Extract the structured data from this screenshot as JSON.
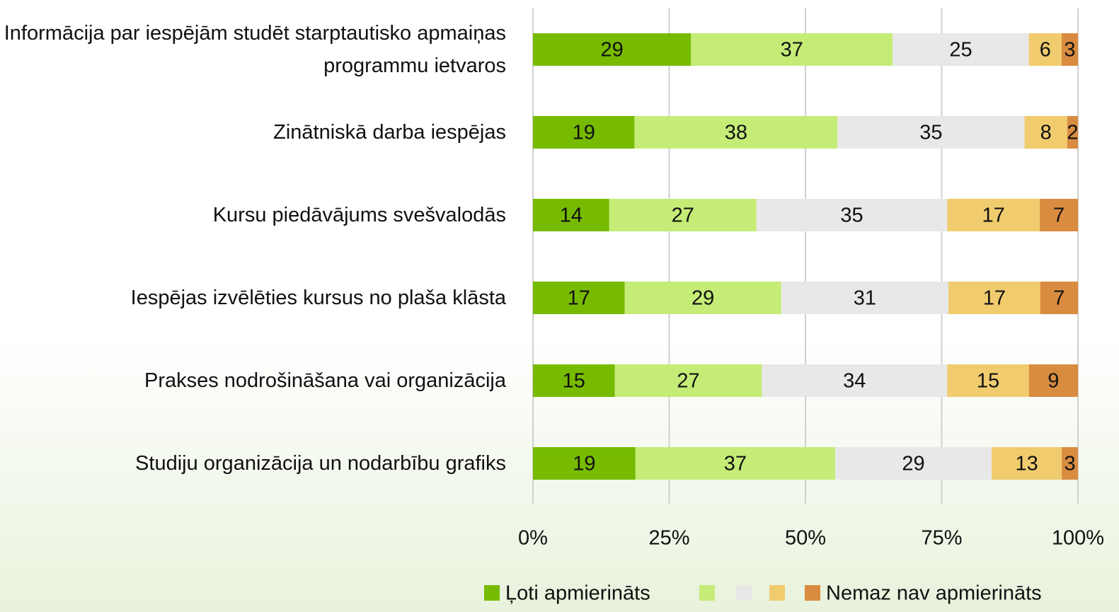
{
  "chart_data": {
    "type": "stacked_bar_100",
    "orientation": "horizontal",
    "categories": [
      "Informācija par iespējām studēt starptautisko apmaiņas programmu ietvaros",
      "Zinātniskā darba iespējas",
      "Kursu piedāvājums svešvalodās",
      "Iespējas izvēlēties kursus no plaša klāsta",
      "Prakses nodrošināšana vai organizācija",
      "Studiju organizācija un nodarbību grafiks"
    ],
    "series": [
      {
        "name": "Ļoti apmierināts",
        "color": "#77bb00",
        "values": [
          29,
          19,
          14,
          17,
          15,
          19
        ]
      },
      {
        "name": null,
        "color": "#c5ec77",
        "values": [
          37,
          38,
          27,
          29,
          27,
          37
        ]
      },
      {
        "name": null,
        "color": "#e8e8e8",
        "values": [
          25,
          35,
          35,
          31,
          34,
          29
        ]
      },
      {
        "name": null,
        "color": "#f0cc6e",
        "values": [
          6,
          8,
          17,
          17,
          15,
          13
        ]
      },
      {
        "name": "Nemaz nav apmierināts",
        "color": "#d98c40",
        "values": [
          3,
          2,
          7,
          7,
          9,
          3
        ]
      }
    ],
    "xlim": [
      0,
      100
    ],
    "xticks": [
      {
        "value": 0,
        "label": "0%"
      },
      {
        "value": 25,
        "label": "25%"
      },
      {
        "value": 50,
        "label": "50%"
      },
      {
        "value": 75,
        "label": "75%"
      },
      {
        "value": 100,
        "label": "100%"
      }
    ],
    "grid": true,
    "legend": "bottom"
  }
}
